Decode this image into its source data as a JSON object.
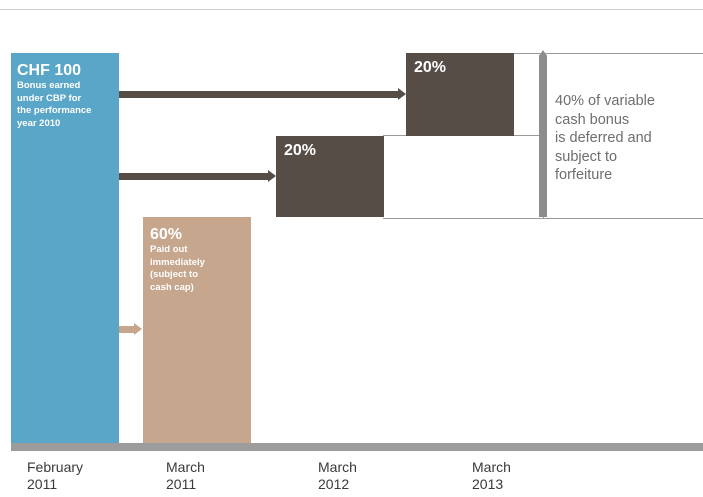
{
  "blue_box": {
    "amount": "CHF 100",
    "description_lines": [
      "Bonus earned",
      "under CBP for",
      "the performance",
      "year 2010"
    ]
  },
  "tan_box": {
    "percent": "60%",
    "description_lines": [
      "Paid out",
      "immediately",
      "(subject to",
      "cash cap)"
    ]
  },
  "deferred_tranches": [
    {
      "percent": "20%"
    },
    {
      "percent": "20%"
    }
  ],
  "note_lines": [
    "40% of variable",
    "cash bonus",
    "is deferred and",
    "subject to",
    "forfeiture"
  ],
  "timeline": [
    {
      "month": "February",
      "year": "2011"
    },
    {
      "month": "March",
      "year": "2011"
    },
    {
      "month": "March",
      "year": "2012"
    },
    {
      "month": "March",
      "year": "2013"
    }
  ],
  "colors": {
    "bonus_blue": "#5aa6c9",
    "immediate_tan": "#c6a68c",
    "deferred_dark": "#564d47",
    "axis_gray": "#9c9c9c"
  }
}
